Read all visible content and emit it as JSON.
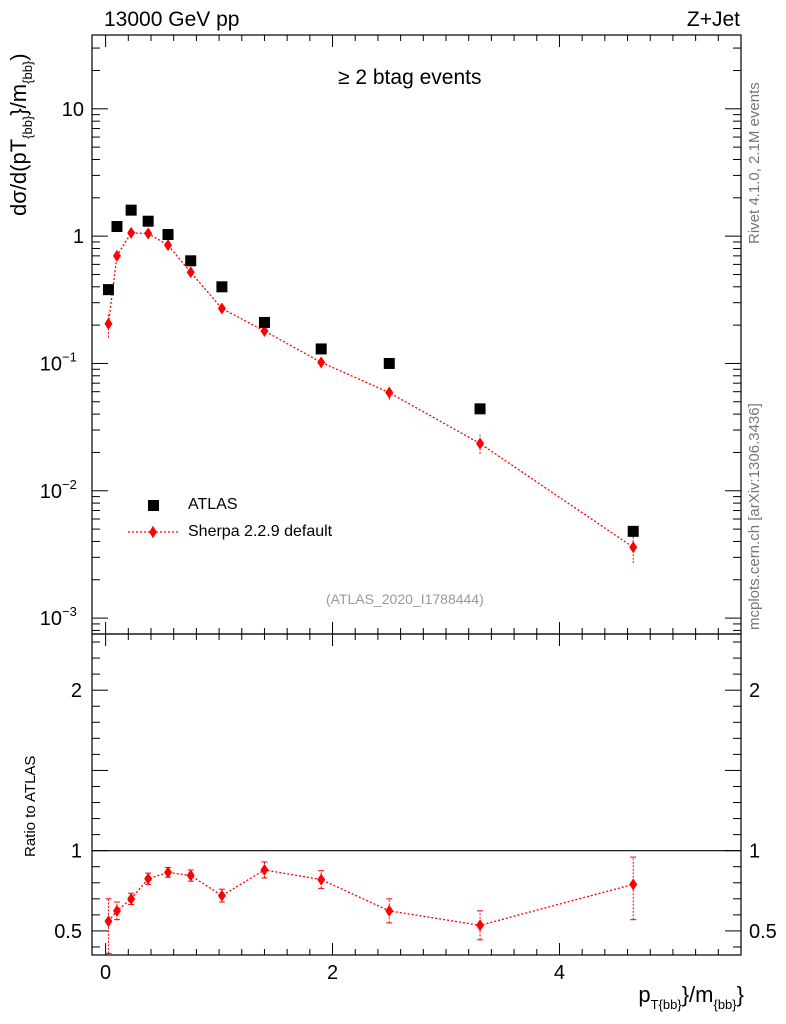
{
  "header": {
    "energy": "13000 GeV pp",
    "process": "Z+Jet",
    "selection": "≥ 2 btag events",
    "analysis": "(ATLAS_2020_I1788444)"
  },
  "side_labels": {
    "rivet": "Rivet 4.1.0,  2.1M events",
    "source": "mcplots.cern.ch [arXiv:1306.3436]"
  },
  "axis_labels": {
    "y_main_parts": [
      "dσ/d(pT",
      "{bb}",
      "}/m",
      "{bb}",
      ")"
    ],
    "y_ratio": "Ratio to ATLAS",
    "x_parts": [
      "p",
      "T{bb}",
      "}/m",
      "{bb}",
      "}"
    ]
  },
  "legend": {
    "atlas": "ATLAS",
    "sherpa": "Sherpa 2.2.9 default"
  },
  "colors": {
    "data": "#000000",
    "mc": "#ff0000"
  },
  "chart_data": [
    {
      "type": "scatter",
      "panel": "main",
      "yscale": "log",
      "xlim": [
        -0.12,
        5.6
      ],
      "ylim": [
        0.00075,
        38
      ],
      "y_ticks": [
        {
          "value": 0.001,
          "label": "10",
          "exp": "−3"
        },
        {
          "value": 0.01,
          "label": "10",
          "exp": "−2"
        },
        {
          "value": 0.1,
          "label": "10",
          "exp": "−1"
        },
        {
          "value": 1,
          "label": "1",
          "exp": ""
        },
        {
          "value": 10,
          "label": "10",
          "exp": ""
        }
      ],
      "series": [
        {
          "name": "ATLAS",
          "marker": "square",
          "x": [
            0.025,
            0.1,
            0.225,
            0.375,
            0.55,
            0.75,
            1.025,
            1.4,
            1.9,
            2.5,
            3.3,
            4.65
          ],
          "y": [
            0.38,
            1.19,
            1.6,
            1.31,
            1.03,
            0.64,
            0.4,
            0.21,
            0.13,
            0.1,
            0.044,
            0.0048
          ]
        },
        {
          "name": "Sherpa 2.2.9 default",
          "marker": "diamond",
          "line": "dotted",
          "x": [
            0.025,
            0.1,
            0.225,
            0.375,
            0.55,
            0.75,
            1.025,
            1.4,
            1.9,
            2.5,
            3.3,
            4.65
          ],
          "y": [
            0.205,
            0.7,
            1.06,
            1.05,
            0.85,
            0.52,
            0.27,
            0.18,
            0.102,
            0.059,
            0.0235,
            0.0036
          ],
          "err_lo": [
            0.045,
            0.06,
            0.06,
            0.06,
            0.05,
            0.04,
            0.025,
            0.015,
            0.01,
            0.007,
            0.004,
            0.0009
          ],
          "err_hi": [
            0.045,
            0.06,
            0.06,
            0.06,
            0.05,
            0.04,
            0.025,
            0.015,
            0.01,
            0.007,
            0.004,
            0.0009
          ]
        }
      ]
    },
    {
      "type": "scatter",
      "panel": "ratio",
      "yscale": "linear",
      "xlim": [
        -0.12,
        5.6
      ],
      "ylim": [
        0.35,
        2.35
      ],
      "x_ticks": [
        0,
        2,
        4
      ],
      "y_ticks": [
        0.5,
        1,
        2
      ],
      "reference_line": 1,
      "series": [
        {
          "name": "Sherpa 2.2.9 default / ATLAS",
          "x": [
            0.025,
            0.1,
            0.225,
            0.375,
            0.55,
            0.75,
            1.025,
            1.4,
            1.9,
            2.5,
            3.3,
            4.65
          ],
          "y": [
            0.56,
            0.625,
            0.7,
            0.825,
            0.865,
            0.845,
            0.72,
            0.88,
            0.82,
            0.625,
            0.535,
            0.79
          ],
          "err_lo": [
            0.2,
            0.055,
            0.035,
            0.035,
            0.03,
            0.035,
            0.04,
            0.05,
            0.055,
            0.075,
            0.09,
            0.22
          ],
          "err_hi": [
            0.14,
            0.055,
            0.035,
            0.035,
            0.03,
            0.035,
            0.04,
            0.05,
            0.055,
            0.075,
            0.09,
            0.17
          ]
        }
      ]
    }
  ]
}
